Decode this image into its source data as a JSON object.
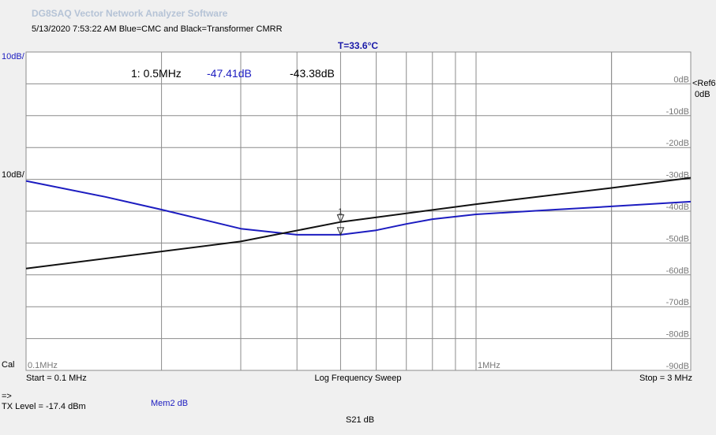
{
  "app_title": "DG8SAQ Vector Network Analyzer Software",
  "subtitle": "5/13/2020   7:53:22 AM    Blue=CMC and Black=Transformer CMRR",
  "temperature": "T=33.6°C",
  "scale_blue": "10dB/",
  "scale_black": "10dB/",
  "ref_label": "<Ref6",
  "ref_value": "0dB",
  "marker": {
    "label": "1: 0.5MHz",
    "blue_value": "-47.41dB",
    "black_value": "-43.38dB",
    "id": "1"
  },
  "cal_label": "Cal",
  "start_label": "Start = 0.1 MHz",
  "sweep_label": "Log Frequency Sweep",
  "stop_label": "Stop = 3 MHz",
  "arrow_label": "=>",
  "tx_level": "TX Level = -17.4 dBm",
  "mem_label": "Mem2 dB",
  "param_label": "S21     dB",
  "colors": {
    "blue": "#1c1cc0",
    "black": "#111111",
    "grid": "#8c8c8c",
    "plot_bg": "#ffffff"
  },
  "chart_data": {
    "type": "line",
    "x_scale": "log",
    "xlim": [
      0.1,
      3
    ],
    "ylim": [
      -90,
      10
    ],
    "x_tick_labels": [
      "0.1MHz",
      "1MHz"
    ],
    "y_tick_labels": [
      "0dB",
      "-10dB",
      "-20dB",
      "-30dB",
      "-40dB",
      "-50dB",
      "-60dB",
      "-70dB",
      "-80dB",
      "-90dB"
    ],
    "grid": true,
    "series": [
      {
        "name": "Blue=CMC",
        "color": "#1c1cc0",
        "x": [
          0.1,
          0.15,
          0.2,
          0.3,
          0.4,
          0.5,
          0.6,
          0.7,
          0.8,
          1.0,
          1.5,
          2.0,
          3.0
        ],
        "y": [
          -30.5,
          -35.5,
          -39.5,
          -45.5,
          -47.4,
          -47.4,
          -46,
          -44,
          -42.5,
          -41,
          -39.5,
          -38.5,
          -37
        ]
      },
      {
        "name": "Black=Transformer CMRR",
        "color": "#111111",
        "x": [
          0.1,
          0.3,
          0.5,
          1.0,
          2.0,
          3.0
        ],
        "y": [
          -58,
          -49.5,
          -43.4,
          -37.8,
          -32.7,
          -29.5
        ]
      }
    ],
    "marker": {
      "x": 0.5,
      "blue_y": -47.41,
      "black_y": -43.38
    }
  }
}
